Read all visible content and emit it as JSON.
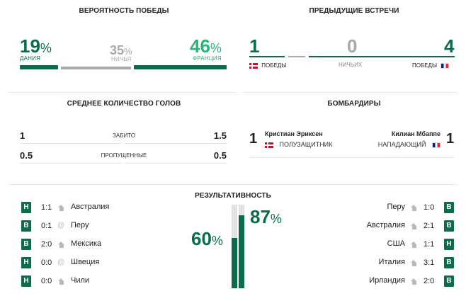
{
  "win_prob": {
    "title": "ВЕРОЯТНОСТЬ ПОБЕДЫ",
    "home": {
      "value": "19",
      "unit": "%",
      "label": "ДАНИЯ",
      "share": 0.19
    },
    "draw": {
      "value": "35",
      "unit": "%",
      "label": "НИЧЬЯ",
      "share": 0.35
    },
    "away": {
      "value": "46",
      "unit": "%",
      "label": "ФРАНЦИЯ",
      "share": 0.46
    }
  },
  "h2h": {
    "title": "ПРЕДЫДУЩИЕ ВСТРЕЧИ",
    "home_wins": "1",
    "draws": "0",
    "away_wins": "4",
    "home_label": "ПОБЕДЫ",
    "draws_label": "НИЧЬИХ",
    "away_label": "ПОБЕДЫ"
  },
  "goals": {
    "title": "СРЕДНЕЕ КОЛИЧЕСТВО ГОЛОВ",
    "rows": [
      {
        "home": "1",
        "label": "ЗАБИТО",
        "away": "1.5"
      },
      {
        "home": "0.5",
        "label": "ПРОПУЩЕННЫЕ",
        "away": "0.5"
      }
    ]
  },
  "scorers": {
    "title": "БОМБАРДИРЫ",
    "home": {
      "goals": "1",
      "name": "Кристиан Эриксен",
      "position": "ПОЛУЗАЩИТНИК"
    },
    "away": {
      "goals": "1",
      "name": "Килиан Мбаппе",
      "position": "НАПАДАЮЩИЙ"
    }
  },
  "form": {
    "title": "РЕЗУЛЬТАТИВНОСТЬ",
    "home_pct": "60",
    "away_pct": "87",
    "unit": "%",
    "home_fill": 0.6,
    "away_fill": 0.87,
    "home_matches": [
      {
        "result": "Н",
        "score": "1:1",
        "venue": "home-icon",
        "team": "Австралия"
      },
      {
        "result": "В",
        "score": "0:1",
        "venue": "away-icon",
        "team": "Перу"
      },
      {
        "result": "В",
        "score": "2:0",
        "venue": "home-icon",
        "team": "Мексика"
      },
      {
        "result": "Н",
        "score": "0:0",
        "venue": "away-icon",
        "team": "Швеция"
      },
      {
        "result": "Н",
        "score": "0:0",
        "venue": "home-icon",
        "team": "Чили"
      }
    ],
    "away_matches": [
      {
        "result": "В",
        "score": "1:0",
        "venue": "home-icon",
        "team": "Перу"
      },
      {
        "result": "В",
        "score": "2:1",
        "venue": "home-icon",
        "team": "Австралия"
      },
      {
        "result": "Н",
        "score": "1:1",
        "venue": "home-icon",
        "team": "США"
      },
      {
        "result": "В",
        "score": "3:1",
        "venue": "home-icon",
        "team": "Италия"
      },
      {
        "result": "В",
        "score": "2:0",
        "venue": "home-icon",
        "team": "Ирландия"
      }
    ]
  },
  "colors": {
    "dark_green": "#0b6b4b",
    "light_green": "#2eb37a",
    "grey": "#a9a9a9"
  }
}
